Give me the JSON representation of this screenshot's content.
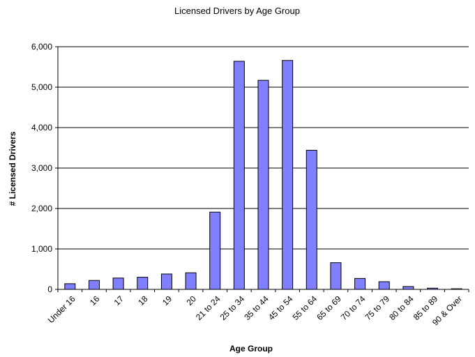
{
  "chart_data": {
    "type": "bar",
    "title": "Licensed Drivers by Age Group",
    "x_label": "Age Group",
    "y_label": "# Licensed Drivers",
    "categories": [
      "Under 16",
      "16",
      "17",
      "18",
      "19",
      "20",
      "21 to 24",
      "25 to 34",
      "35 to 44",
      "45 to 54",
      "55 to 64",
      "65 to 69",
      "70 to 74",
      "75 to 79",
      "80 to 84",
      "85 to 89",
      "90 & Over"
    ],
    "values": [
      140,
      220,
      280,
      300,
      380,
      410,
      1910,
      5640,
      5170,
      5660,
      3440,
      660,
      270,
      190,
      70,
      30,
      15
    ],
    "color": "#8080ff",
    "ylim": [
      0,
      6000
    ],
    "yticks": [
      0,
      {
        "value": 1000,
        "label": "1,000"
      },
      {
        "value": 2000,
        "label": "2,000"
      },
      {
        "value": 3000,
        "label": "3,000"
      },
      {
        "value": 4000,
        "label": "4,000"
      },
      {
        "value": 5000,
        "label": "5,000"
      },
      {
        "value": 6000,
        "label": "6,000"
      }
    ],
    "grid": true
  }
}
